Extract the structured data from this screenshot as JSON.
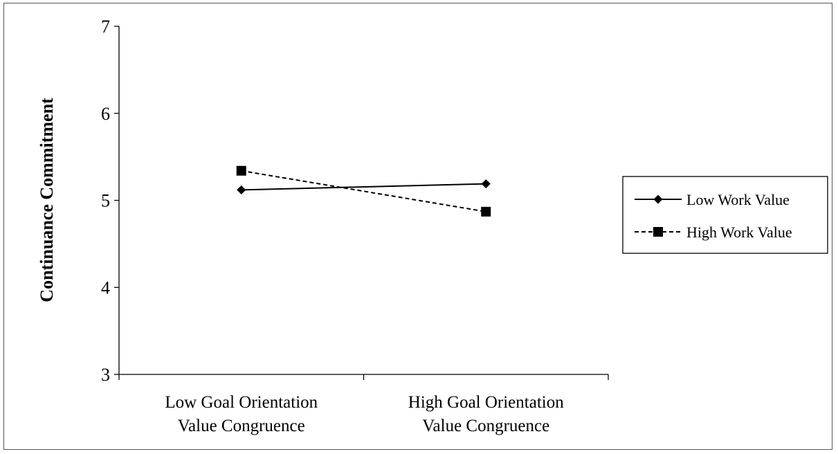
{
  "chart_data": {
    "type": "line",
    "title": "",
    "xlabel": "",
    "ylabel": "Continuance Commitment",
    "categories": [
      [
        "Low Goal Orientation",
        "Value Congruence"
      ],
      [
        "High Goal Orientation",
        "Value Congruence"
      ]
    ],
    "ylim": [
      3,
      7
    ],
    "yticks": [
      3,
      4,
      5,
      6,
      7
    ],
    "grid": false,
    "legend_position": "right",
    "series": [
      {
        "name": "Low Work Value",
        "values": [
          5.12,
          5.19
        ],
        "marker": "diamond",
        "line": "solid",
        "color": "#000000"
      },
      {
        "name": "High Work Value",
        "values": [
          5.34,
          4.87
        ],
        "marker": "square",
        "line": "dashed",
        "color": "#000000"
      }
    ]
  }
}
